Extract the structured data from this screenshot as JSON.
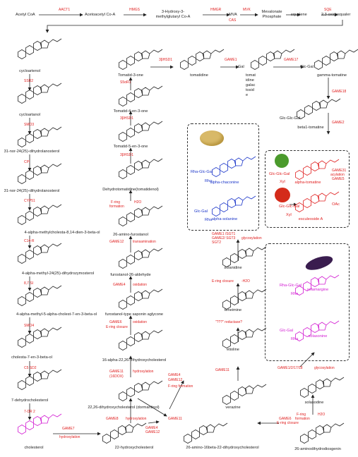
{
  "top": {
    "acetyl_coa": "Acetyl CoA",
    "aact1": "AACT1",
    "acetoacetyl_coa": "Acetoacetyl Co-A",
    "hmgs": "HMGS",
    "hmg_coa_1": "3-Hydroxy-3-",
    "hmg_coa_2": "methylglutaryl Co-A",
    "hmgr": "HMGR",
    "mva": "MVA",
    "cas": "CAS",
    "mvk": "MVK",
    "mevalonate_1": "Mevalonate",
    "mevalonate_2": "Phosphate",
    "squalene": "squalene",
    "sqe": "SQE",
    "oxidosqualene": "2,3-oxidosqualer"
  },
  "col1": {
    "cycloartenol": "cycloartenol",
    "ssr2": "SSR2",
    "cycloartanol": "cycloartanol",
    "smo3": "SMO3",
    "c3": "31-nor-24(25)-dihydrolanosterol",
    "cpi": "CPI",
    "c4": "31-nor-24(25)-dihydrolanosterol",
    "cyp51": "CYP51",
    "c5": "4-alpha-methylcholesta-8,14-dien-3-beta-ol",
    "c14r": "C14-R",
    "c6": "4-alpha-methyl-24(25)-dihydrozymosterol",
    "e87si": "8,7 SI",
    "c7": "4-alpha-methyl-5-alpha-cholest-7-en-3-beta-ol",
    "smo4": "SMO4",
    "c8": "cholesta-7-en-3-beta-ol",
    "c5sd2": "C5 SD2",
    "c9": "7-dehydrocholesterol",
    "dr2": "7-DR 2",
    "cholesterol": "cholesterol",
    "game7": "GAME7",
    "hydroxylation": "hydroxylation"
  },
  "col2": {
    "tomatid3one": "Tomatid-3-one",
    "s5ar1": "S5αR1",
    "tomatid4en": "Tomatid-4-en-3-one",
    "hsd1a": "3βHSD1",
    "tomatid5en": "Tomatid-5-en-3-one",
    "hsd1b": "3βHSD1",
    "dehydrotomatidine": "Dehydrotomatidine(tomatidenol)",
    "fring": "F-ring",
    "formation": "formation",
    "h2o": "H2O",
    "amino_furostanol": "26-amino-furostanol",
    "game12": "GAME12",
    "transamination": "transamination",
    "furostanol_ald": "furostanol-26-aldehyde",
    "game4": "GAME4",
    "oxidation": "oxidation",
    "furostanol_sap": "furostanol-type saponin aglycone",
    "game6": "GAME6",
    "ering_closure": "E-ring closure",
    "oxidation2": "oxidation",
    "hydroxychol_1622": "16-alpha-22,26-trihydroxycholesterol",
    "game11": "GAME11",
    "sixteendox": "(16DOX)",
    "hydroxylation2": "hydroxylation",
    "game4b": "GAME4",
    "game12b": "GAME12",
    "fring_form": "F-ring formation",
    "dormantinol": "22,26-dihydroxycholesterol (dormantinol)",
    "game8": "GAME8",
    "hydroxylation3": "hydroxylation",
    "hydroxychol22": "22-hydroxycholesterol",
    "game4c": "GAME4",
    "game12c": "GAME12",
    "game11b": "GAME11",
    "amino16beta": "26-amino-16beta-22-dihydroxycholesterol"
  },
  "col3": {
    "hsd1c": "3βHSD1",
    "tomatidine": "tomatidine",
    "game1": "GAME1",
    "tomatine_txt": [
      "tomat",
      "idine",
      "galac",
      "tosid",
      "e"
    ],
    "gal": "Gal",
    "game17": "GAME17",
    "glc_gal": "Glc-Gal",
    "gamma_tomatine": "gamma-tomatine",
    "game18": "GAME18",
    "glc_glc_gal": "Glc-Glc-Gal",
    "beta1_tomatine": "beta1-tomatine",
    "game2": "GAME2",
    "rha_glc_gal": "Rha-Glc-Gal",
    "rha": "Rha",
    "alpha_chaconine": "alpha-chaconine",
    "glc_gal2": "Glc-Gal",
    "alpha_solanine": "alpha-solanine",
    "glc_glc_gal2": "Glc-Glc-Gal",
    "xyl": "Xyl",
    "alpha_tomatine": "alpha-tomatine",
    "game31": "GAME31",
    "acylation": "acylation",
    "game5": "GAME5",
    "oac": "OAc",
    "glc_glc_gal3": "Glc-Glc-Gal",
    "esculeoside": "esculeoside A",
    "game1sgt1": "GAME1 /SGT1",
    "game2sgt3": "GAME2/ SGT3",
    "sgt2": "SGT2",
    "glycosylation": "glycosylation",
    "solanidine": "solanidine",
    "ering_closure2": "E-ring closure",
    "h2o2": "-H2O",
    "teneimine": "teneimine",
    "reductase": "\"???\" reductase?",
    "etioline": "etioline",
    "game11c": "GAME11",
    "verazine": "verazine",
    "game6b": "GAME6",
    "ering_closure3": "E-ring closure",
    "amino_dihydroxychol": "26-amino-16beta-22-dihydroxycholesterol"
  },
  "col4": {
    "rha_glc_gal2": "Rha-Glc-Gal",
    "rha2": "Rha",
    "solamargine": "solamargine",
    "glc_gal3": "Glc-Gal",
    "rha3": "Rha",
    "solasonine": "solasonine",
    "game_multi": "GAME1/2/17/18",
    "glycosylation2": "glycosylation",
    "solasodine": "solasodine",
    "fring2": "F-ring",
    "formation2": "formation",
    "h2o3": "H2O",
    "aminodihydro": "26-aminodihydrodiosgenin"
  },
  "colors": {
    "enzyme": "#e02020",
    "potato": "#1a35c9",
    "eggplant": "#d21ad2",
    "tomato": "#e02020",
    "structure": "#222222"
  }
}
